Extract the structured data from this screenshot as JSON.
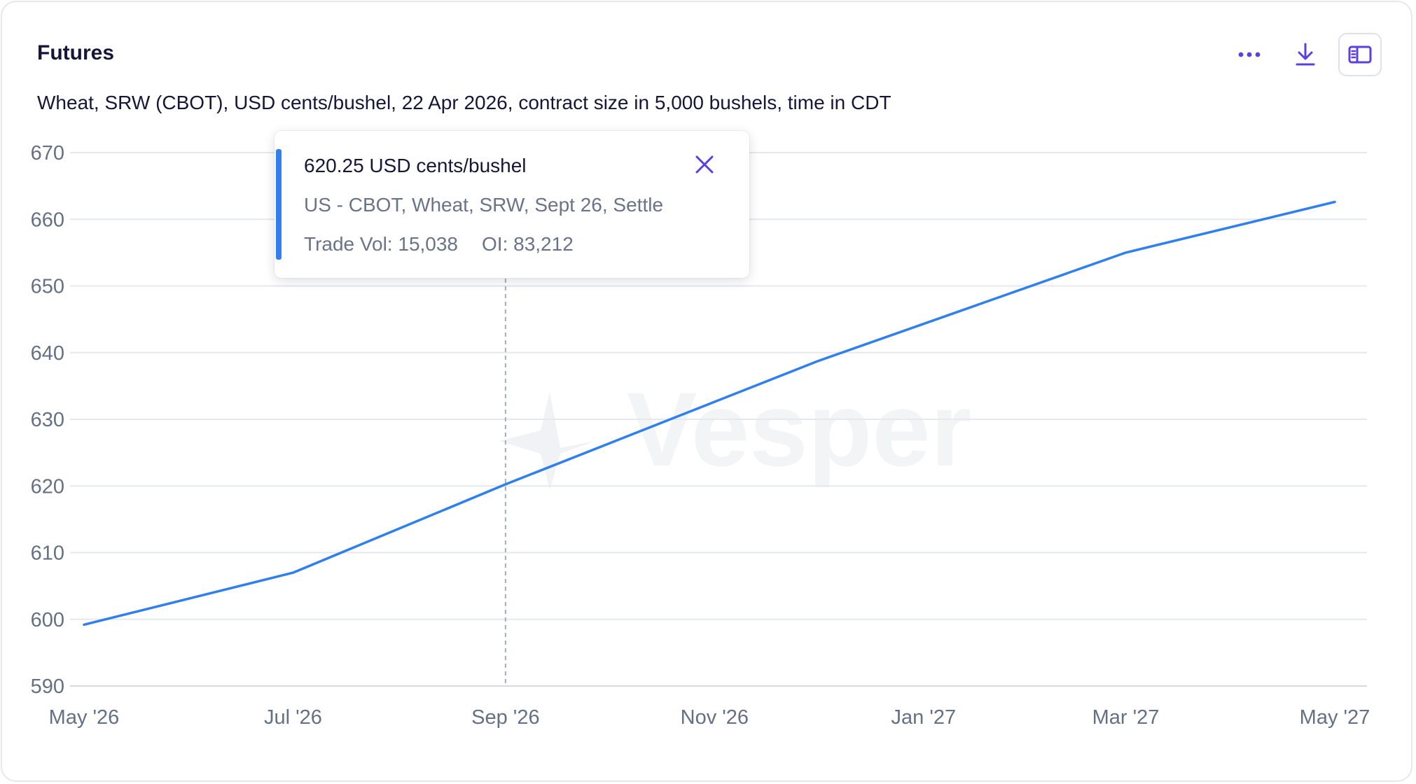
{
  "header": {
    "title": "Futures",
    "subtitle": "Wheat, SRW (CBOT), USD cents/bushel, 22 Apr 2026, contract size in 5,000 bushels, time in CDT"
  },
  "toolbar": {
    "more_icon": "more-horizontal-icon",
    "download_icon": "download-icon",
    "panel_icon": "side-panel-icon",
    "accent_color": "#5b3fe0"
  },
  "watermark": "Vesper",
  "tooltip": {
    "value": "620.25 USD cents/bushel",
    "series": "US - CBOT, Wheat, SRW, Sept 26, Settle",
    "trade_vol": "Trade Vol: 15,038",
    "oi": "OI: 83,212",
    "accent_color": "#2f7fed"
  },
  "chart_data": {
    "type": "line",
    "x_ticks": [
      "May '26",
      "Jul '26",
      "Sep '26",
      "Nov '26",
      "Jan '27",
      "Mar '27",
      "May '27"
    ],
    "y_ticks": [
      590,
      600,
      610,
      620,
      630,
      640,
      650,
      660,
      670
    ],
    "ylim": [
      590,
      670
    ],
    "grid": true,
    "line_color": "#2f7fed",
    "series": [
      {
        "points": [
          {
            "x": "2026-05-01",
            "y": 599.2
          },
          {
            "x": "2026-07-01",
            "y": 607.0
          },
          {
            "x": "2026-09-01",
            "y": 620.25
          },
          {
            "x": "2026-12-01",
            "y": 638.7
          },
          {
            "x": "2027-03-01",
            "y": 655.0
          },
          {
            "x": "2027-05-01",
            "y": 662.6
          }
        ]
      }
    ],
    "highlight_x": "2026-09-01"
  }
}
